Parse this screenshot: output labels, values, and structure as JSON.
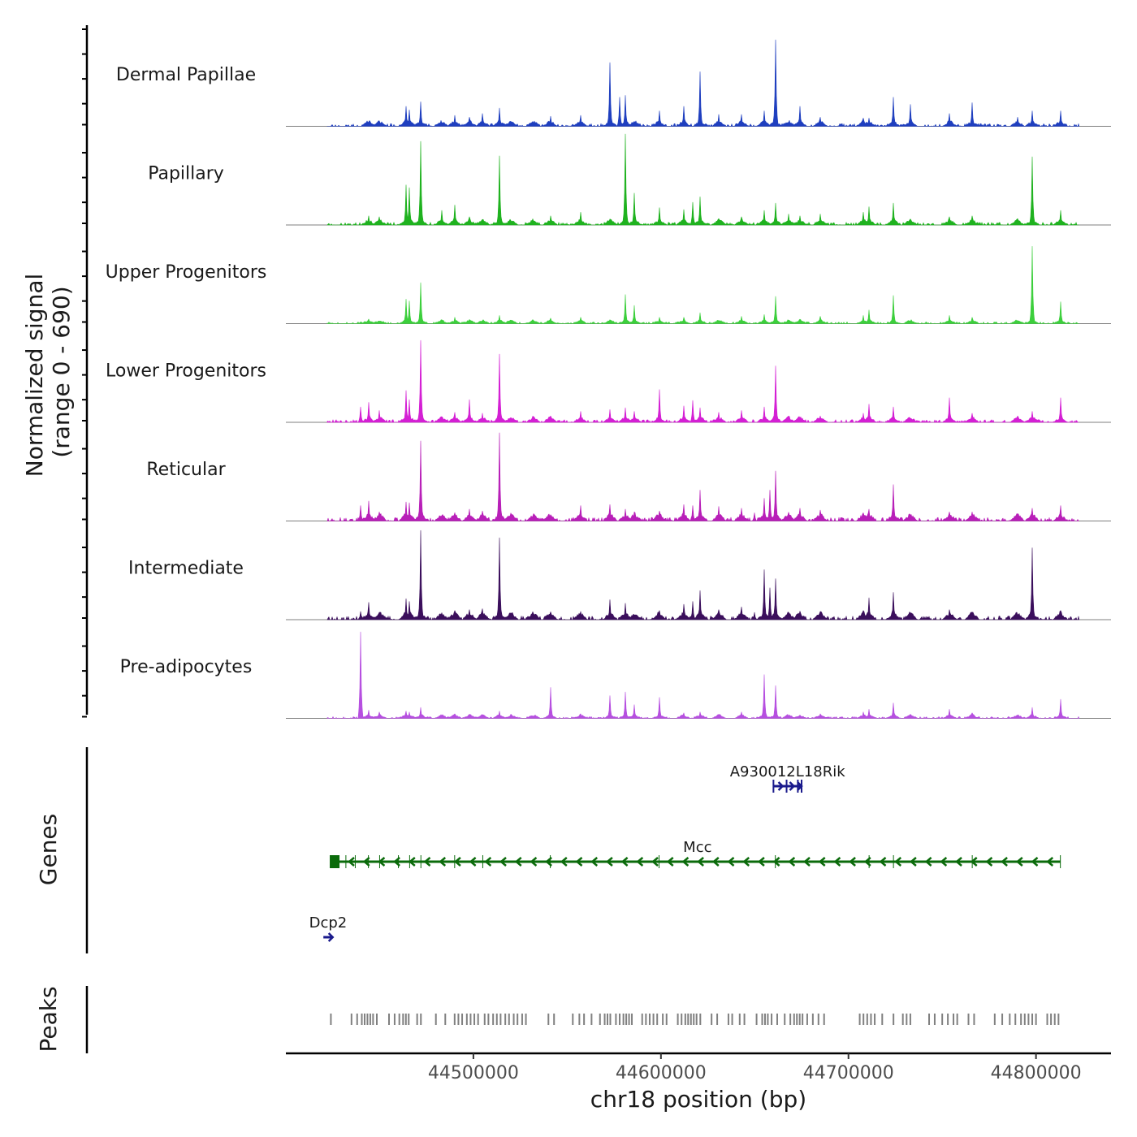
{
  "chart_data": {
    "type": "area",
    "title": "",
    "chromosome": "chr18",
    "xlabel": "chr18 position (bp)",
    "ylabel_line1": "Normalized signal",
    "ylabel_line2": "(range 0 - 690)",
    "xlim": [
      44400000,
      44840000
    ],
    "ylim": [
      0,
      690
    ],
    "x_ticks": [
      44500000,
      44600000,
      44700000,
      44800000
    ],
    "x_tick_labels": [
      "44500000",
      "44600000",
      "44700000",
      "44800000"
    ],
    "data_start": 44422000,
    "data_end": 44823000,
    "peak_positions": [
      44444000,
      44450000,
      44464000,
      44466000,
      44472000,
      44483000,
      44490000,
      44498000,
      44505000,
      44514000,
      44520000,
      44532000,
      44541000,
      44557000,
      44573000,
      44581000,
      44586000,
      44599000,
      44612000,
      44621000,
      44631000,
      44643000,
      44655000,
      44661000,
      44668000,
      44674000,
      44685000,
      44708000,
      44711000,
      44724000,
      44733000,
      44754000,
      44766000,
      44790000,
      44798000,
      44813000
    ],
    "series": [
      {
        "name": "Dermal Papillae",
        "color": "#1f3fbf",
        "bg": 0.03,
        "peaks": [
          [
            44444000,
            0.05
          ],
          [
            44450000,
            0.06
          ],
          [
            44464000,
            0.22
          ],
          [
            44466000,
            0.18
          ],
          [
            44472000,
            0.27
          ],
          [
            44490000,
            0.12
          ],
          [
            44498000,
            0.1
          ],
          [
            44505000,
            0.14
          ],
          [
            44514000,
            0.2
          ],
          [
            44541000,
            0.11
          ],
          [
            44557000,
            0.12
          ],
          [
            44573000,
            0.7
          ],
          [
            44578000,
            0.32
          ],
          [
            44581000,
            0.34
          ],
          [
            44599000,
            0.17
          ],
          [
            44612000,
            0.22
          ],
          [
            44621000,
            0.6
          ],
          [
            44631000,
            0.13
          ],
          [
            44643000,
            0.13
          ],
          [
            44655000,
            0.17
          ],
          [
            44661000,
            0.95
          ],
          [
            44674000,
            0.22
          ],
          [
            44685000,
            0.1
          ],
          [
            44708000,
            0.09
          ],
          [
            44711000,
            0.09
          ],
          [
            44724000,
            0.32
          ],
          [
            44733000,
            0.24
          ],
          [
            44754000,
            0.14
          ],
          [
            44766000,
            0.26
          ],
          [
            44790000,
            0.1
          ],
          [
            44798000,
            0.17
          ],
          [
            44813000,
            0.17
          ]
        ]
      },
      {
        "name": "Papillary",
        "color": "#1fb21f",
        "bg": 0.03,
        "peaks": [
          [
            44444000,
            0.1
          ],
          [
            44450000,
            0.09
          ],
          [
            44464000,
            0.44
          ],
          [
            44466000,
            0.41
          ],
          [
            44472000,
            0.92
          ],
          [
            44483000,
            0.16
          ],
          [
            44490000,
            0.22
          ],
          [
            44498000,
            0.09
          ],
          [
            44514000,
            0.76
          ],
          [
            44541000,
            0.1
          ],
          [
            44557000,
            0.14
          ],
          [
            44581000,
            1.0
          ],
          [
            44586000,
            0.35
          ],
          [
            44599000,
            0.19
          ],
          [
            44612000,
            0.17
          ],
          [
            44617000,
            0.25
          ],
          [
            44621000,
            0.31
          ],
          [
            44631000,
            0.07
          ],
          [
            44643000,
            0.09
          ],
          [
            44655000,
            0.16
          ],
          [
            44661000,
            0.24
          ],
          [
            44668000,
            0.12
          ],
          [
            44674000,
            0.1
          ],
          [
            44685000,
            0.12
          ],
          [
            44708000,
            0.14
          ],
          [
            44711000,
            0.2
          ],
          [
            44724000,
            0.24
          ],
          [
            44754000,
            0.09
          ],
          [
            44766000,
            0.1
          ],
          [
            44790000,
            0.07
          ],
          [
            44798000,
            0.75
          ],
          [
            44813000,
            0.16
          ]
        ]
      },
      {
        "name": "Upper Progenitors",
        "color": "#3ccf3c",
        "bg": 0.02,
        "peaks": [
          [
            44444000,
            0.05
          ],
          [
            44464000,
            0.27
          ],
          [
            44466000,
            0.25
          ],
          [
            44472000,
            0.45
          ],
          [
            44490000,
            0.07
          ],
          [
            44514000,
            0.09
          ],
          [
            44541000,
            0.06
          ],
          [
            44557000,
            0.07
          ],
          [
            44581000,
            0.32
          ],
          [
            44586000,
            0.2
          ],
          [
            44599000,
            0.07
          ],
          [
            44612000,
            0.07
          ],
          [
            44621000,
            0.12
          ],
          [
            44643000,
            0.08
          ],
          [
            44655000,
            0.1
          ],
          [
            44661000,
            0.3
          ],
          [
            44685000,
            0.08
          ],
          [
            44708000,
            0.09
          ],
          [
            44711000,
            0.15
          ],
          [
            44724000,
            0.31
          ],
          [
            44754000,
            0.09
          ],
          [
            44766000,
            0.07
          ],
          [
            44798000,
            0.85
          ],
          [
            44813000,
            0.24
          ]
        ]
      },
      {
        "name": "Lower Progenitors",
        "color": "#d41fd4",
        "bg": 0.03,
        "peaks": [
          [
            44440000,
            0.17
          ],
          [
            44444000,
            0.22
          ],
          [
            44450000,
            0.13
          ],
          [
            44464000,
            0.35
          ],
          [
            44466000,
            0.25
          ],
          [
            44472000,
            0.9
          ],
          [
            44490000,
            0.11
          ],
          [
            44498000,
            0.25
          ],
          [
            44505000,
            0.1
          ],
          [
            44514000,
            0.75
          ],
          [
            44541000,
            0.07
          ],
          [
            44557000,
            0.12
          ],
          [
            44573000,
            0.14
          ],
          [
            44581000,
            0.16
          ],
          [
            44586000,
            0.12
          ],
          [
            44599000,
            0.36
          ],
          [
            44612000,
            0.18
          ],
          [
            44617000,
            0.24
          ],
          [
            44621000,
            0.16
          ],
          [
            44631000,
            0.11
          ],
          [
            44643000,
            0.13
          ],
          [
            44655000,
            0.17
          ],
          [
            44661000,
            0.62
          ],
          [
            44685000,
            0.07
          ],
          [
            44708000,
            0.1
          ],
          [
            44711000,
            0.2
          ],
          [
            44724000,
            0.17
          ],
          [
            44754000,
            0.27
          ],
          [
            44766000,
            0.1
          ],
          [
            44790000,
            0.07
          ],
          [
            44798000,
            0.12
          ],
          [
            44813000,
            0.27
          ]
        ]
      },
      {
        "name": "Reticular",
        "color": "#b81fb8",
        "bg": 0.04,
        "peaks": [
          [
            44440000,
            0.17
          ],
          [
            44444000,
            0.22
          ],
          [
            44450000,
            0.1
          ],
          [
            44464000,
            0.21
          ],
          [
            44466000,
            0.2
          ],
          [
            44472000,
            0.88
          ],
          [
            44490000,
            0.08
          ],
          [
            44498000,
            0.13
          ],
          [
            44505000,
            0.11
          ],
          [
            44514000,
            0.97
          ],
          [
            44541000,
            0.07
          ],
          [
            44557000,
            0.17
          ],
          [
            44573000,
            0.18
          ],
          [
            44581000,
            0.13
          ],
          [
            44586000,
            0.1
          ],
          [
            44599000,
            0.11
          ],
          [
            44612000,
            0.18
          ],
          [
            44617000,
            0.17
          ],
          [
            44621000,
            0.34
          ],
          [
            44631000,
            0.16
          ],
          [
            44643000,
            0.14
          ],
          [
            44650000,
            0.09
          ],
          [
            44655000,
            0.25
          ],
          [
            44658000,
            0.34
          ],
          [
            44661000,
            0.55
          ],
          [
            44674000,
            0.14
          ],
          [
            44685000,
            0.12
          ],
          [
            44708000,
            0.09
          ],
          [
            44711000,
            0.13
          ],
          [
            44724000,
            0.4
          ],
          [
            44754000,
            0.1
          ],
          [
            44766000,
            0.1
          ],
          [
            44790000,
            0.07
          ],
          [
            44798000,
            0.14
          ],
          [
            44813000,
            0.17
          ]
        ]
      },
      {
        "name": "Intermediate",
        "color": "#3b0f5c",
        "bg": 0.04,
        "peaks": [
          [
            44440000,
            0.09
          ],
          [
            44444000,
            0.19
          ],
          [
            44450000,
            0.08
          ],
          [
            44464000,
            0.23
          ],
          [
            44466000,
            0.2
          ],
          [
            44472000,
            0.98
          ],
          [
            44490000,
            0.1
          ],
          [
            44498000,
            0.11
          ],
          [
            44505000,
            0.12
          ],
          [
            44514000,
            0.9
          ],
          [
            44541000,
            0.07
          ],
          [
            44557000,
            0.09
          ],
          [
            44573000,
            0.22
          ],
          [
            44581000,
            0.18
          ],
          [
            44599000,
            0.1
          ],
          [
            44612000,
            0.17
          ],
          [
            44617000,
            0.2
          ],
          [
            44621000,
            0.32
          ],
          [
            44631000,
            0.11
          ],
          [
            44643000,
            0.14
          ],
          [
            44650000,
            0.08
          ],
          [
            44655000,
            0.55
          ],
          [
            44658000,
            0.35
          ],
          [
            44661000,
            0.45
          ],
          [
            44674000,
            0.07
          ],
          [
            44685000,
            0.08
          ],
          [
            44708000,
            0.1
          ],
          [
            44711000,
            0.24
          ],
          [
            44724000,
            0.3
          ],
          [
            44754000,
            0.11
          ],
          [
            44766000,
            0.08
          ],
          [
            44790000,
            0.05
          ],
          [
            44798000,
            0.79
          ],
          [
            44813000,
            0.1
          ]
        ]
      },
      {
        "name": "Pre-adipocytes",
        "color": "#b64fe0",
        "bg": 0.02,
        "peaks": [
          [
            44440000,
            0.95
          ],
          [
            44444000,
            0.09
          ],
          [
            44450000,
            0.07
          ],
          [
            44464000,
            0.08
          ],
          [
            44466000,
            0.07
          ],
          [
            44472000,
            0.12
          ],
          [
            44490000,
            0.05
          ],
          [
            44514000,
            0.08
          ],
          [
            44541000,
            0.34
          ],
          [
            44557000,
            0.05
          ],
          [
            44573000,
            0.25
          ],
          [
            44581000,
            0.29
          ],
          [
            44586000,
            0.15
          ],
          [
            44599000,
            0.23
          ],
          [
            44612000,
            0.06
          ],
          [
            44621000,
            0.07
          ],
          [
            44643000,
            0.07
          ],
          [
            44655000,
            0.48
          ],
          [
            44661000,
            0.36
          ],
          [
            44685000,
            0.05
          ],
          [
            44708000,
            0.07
          ],
          [
            44711000,
            0.1
          ],
          [
            44724000,
            0.17
          ],
          [
            44754000,
            0.1
          ],
          [
            44766000,
            0.06
          ],
          [
            44798000,
            0.12
          ],
          [
            44813000,
            0.21
          ]
        ]
      }
    ],
    "genes_panel_label": "Genes",
    "genes": [
      {
        "name": "A930012L18Rik",
        "start": 44660000,
        "end": 44675000,
        "strand": "+",
        "color": "#1a1a8c",
        "row": 0
      },
      {
        "name": "Mcc",
        "start": 44426000,
        "end": 44813000,
        "strand": "-",
        "color": "#0b6b0b",
        "row": 1
      },
      {
        "name": "Dcp2",
        "start": 44420000,
        "end": 44425000,
        "strand": "+",
        "color": "#1a1a8c",
        "row": 2
      }
    ],
    "peaks_panel_label": "Peaks",
    "peaks_color": "#808080",
    "peaks": [
      44424000,
      44435000,
      44438000,
      44440500,
      44442000,
      44443500,
      44445000,
      44446500,
      44448500,
      44455000,
      44458000,
      44460500,
      44462500,
      44464000,
      44465500,
      44470000,
      44472000,
      44480000,
      44485000,
      44490000,
      44492000,
      44494000,
      44496500,
      44498500,
      44500500,
      44502500,
      44506000,
      44508000,
      44510500,
      44512500,
      44514500,
      44517000,
      44519000,
      44521500,
      44523500,
      44526000,
      44528000,
      44540000,
      44543000,
      44553000,
      44556500,
      44559000,
      44563000,
      44567500,
      44570000,
      44571500,
      44573000,
      44576000,
      44578000,
      44580000,
      44581500,
      44583000,
      44584500,
      44590000,
      44592000,
      44594000,
      44596000,
      44598000,
      44601000,
      44603000,
      44609000,
      44611000,
      44613000,
      44614500,
      44616000,
      44617500,
      44619000,
      44621000,
      44627000,
      44630000,
      44636000,
      44638000,
      44642000,
      44644500,
      44651000,
      44654000,
      44655500,
      44657000,
      44659000,
      44662000,
      44666000,
      44669000,
      44671000,
      44672500,
      44674000,
      44675500,
      44678000,
      44681000,
      44684000,
      44687000,
      44706000,
      44708000,
      44710000,
      44712000,
      44714000,
      44718000,
      44724000,
      44729000,
      44731000,
      44733000,
      44743000,
      44746000,
      44750000,
      44753000,
      44756000,
      44758000,
      44764000,
      44767000,
      44778000,
      44782000,
      44786000,
      44789000,
      44792000,
      44794000,
      44796000,
      44798000,
      44800000,
      44806000,
      44808000,
      44810000,
      44812000
    ]
  }
}
